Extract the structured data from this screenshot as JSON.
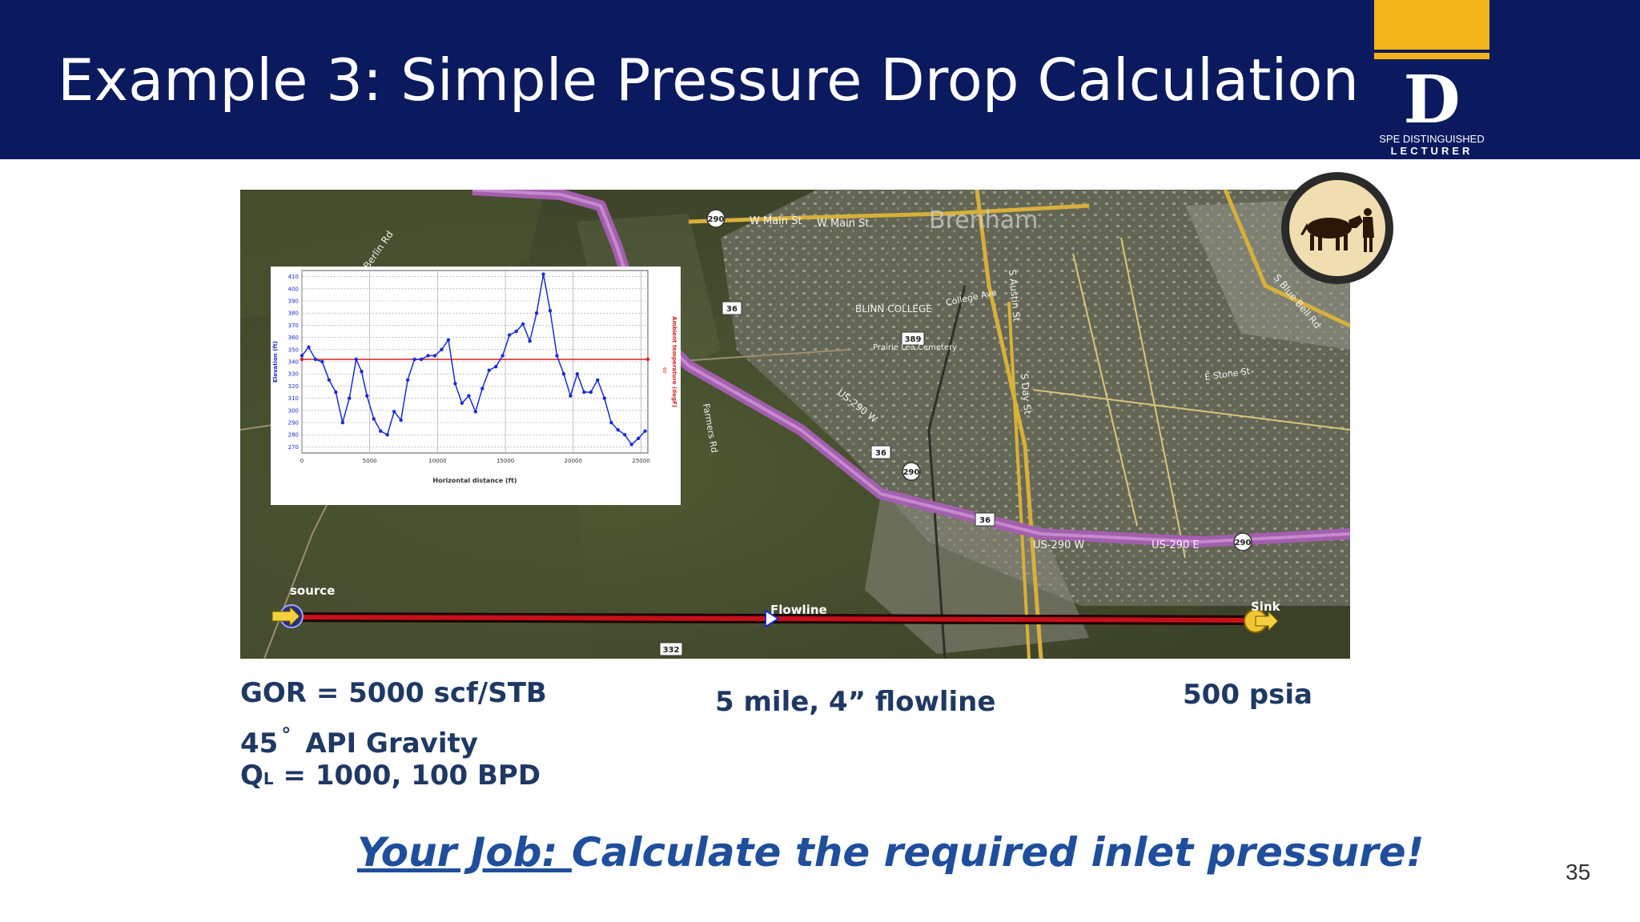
{
  "slide": {
    "title": "Example 3: Simple Pressure Drop Calculation",
    "page_number": "35"
  },
  "logo": {
    "letter": "D",
    "line1": "SPE DISTINGUISHED",
    "line2": "LECTURER"
  },
  "map": {
    "labels": {
      "source": "source",
      "flowline": "Flowline",
      "sink": "Sink",
      "main_st": "W Main St",
      "main_st2": "W Main St",
      "brenham": "Brenham",
      "blinn_college": "BLINN COLLEGE",
      "college_ave": "College Ave",
      "us290w": "US-290 W",
      "us290w_bottom": "US-290 W",
      "us290e": "US-290 E",
      "stone_st": "E Stone St",
      "austin_st": "S Austin St",
      "day_st": "S Day St",
      "bell_rd": "S Blue Bell Rd",
      "berlin_rd": "Berlin Rd",
      "farmers_rd": "Farmers Rd",
      "prairie_lea": "Prairie Lea Cemetery"
    },
    "shields": {
      "r290": "290",
      "r36": "36",
      "r389": "389",
      "r332": "332"
    },
    "colors": {
      "route": "#a35fae",
      "flowline": "#c8101a",
      "road": "#d8b03a"
    }
  },
  "chart_data": {
    "type": "line",
    "xlabel": "Horizontal distance (ft)",
    "ylabel": "Elevation (ft)",
    "ylabel_right": "Ambient temperature (degF)",
    "right_tick": "60",
    "xlim": [
      0,
      25500
    ],
    "ylim": [
      265,
      415
    ],
    "xticks": [
      0,
      5000,
      10000,
      15000,
      20000,
      25000
    ],
    "yticks": [
      270,
      280,
      290,
      300,
      310,
      320,
      330,
      340,
      350,
      360,
      370,
      380,
      390,
      400,
      410
    ],
    "grid": true,
    "series": [
      {
        "color": "#1a2bd6",
        "x": [
          0,
          500,
          1000,
          1500,
          2000,
          2500,
          3000,
          3500,
          4000,
          4400,
          4800,
          5300,
          5800,
          6300,
          6800,
          7300,
          7800,
          8300,
          8800,
          9300,
          9800,
          10300,
          10800,
          11300,
          11800,
          12300,
          12800,
          13300,
          13800,
          14300,
          14800,
          15300,
          15800,
          16300,
          16800,
          17300,
          17800,
          18300,
          18800,
          19300,
          19800,
          20300,
          20800,
          21300,
          21800,
          22300,
          22800,
          23300,
          23800,
          24300,
          24800,
          25300
        ],
        "y": [
          345,
          352,
          342,
          340,
          325,
          315,
          290,
          310,
          342,
          332,
          312,
          293,
          283,
          280,
          299,
          292,
          325,
          342,
          342,
          345,
          345,
          350,
          358,
          322,
          306,
          312,
          299,
          318,
          333,
          336,
          345,
          362,
          365,
          371,
          357,
          380,
          412,
          382,
          345,
          330,
          312,
          330,
          315,
          315,
          325,
          310,
          290,
          284,
          280,
          272,
          277,
          283
        ]
      },
      {
        "color": "#d92020",
        "x": [
          0,
          25500
        ],
        "y": [
          342,
          342
        ]
      }
    ]
  },
  "info": {
    "gor": "GOR = 5000 scf/STB",
    "api_num": "45",
    "api_deg": "°",
    "api_text": "API Gravity",
    "q_main": "Q",
    "q_sub": "L",
    "q_value": " = 1000, 100 BPD",
    "flowline": "5 mile, 4” flowline",
    "pressure": "500 psia"
  },
  "job": {
    "lead": "Your Job: ",
    "text": "Calculate the required inlet pressure!"
  }
}
